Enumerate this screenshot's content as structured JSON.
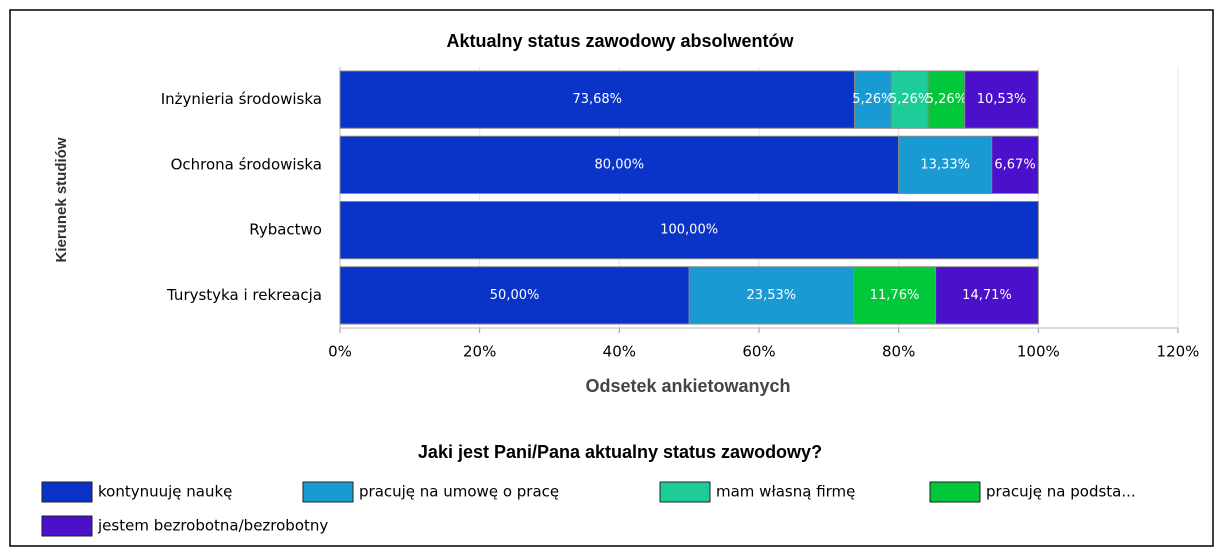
{
  "chart_data": {
    "type": "stacked-barh",
    "title": "Aktualny status zawodowy absolwentów",
    "xlabel": "Odsetek ankietowanych",
    "ylabel": "Kierunek studiów",
    "legend_title": "Jaki jest Pani/Pana aktualny status zawodowy?",
    "categories": [
      "Inżynieria środowiska",
      "Ochrona środowiska",
      "Rybactwo",
      "Turystyka i rekreacja"
    ],
    "series": [
      {
        "name": "kontynuuję naukę",
        "color": "#0a33c8",
        "values": [
          73.68,
          80.0,
          100.0,
          50.0
        ],
        "value_labels": [
          "73,68%",
          "80,00%",
          "100,00%",
          "50,00%"
        ]
      },
      {
        "name": "pracuję na umowę o pracę",
        "color": "#1a9ad2",
        "values": [
          5.26,
          13.33,
          null,
          23.53
        ],
        "value_labels": [
          "5,26%",
          "13,33%",
          null,
          "23,53%"
        ]
      },
      {
        "name": "mam własną firmę",
        "color": "#1ecc99",
        "values": [
          5.26,
          null,
          null,
          null
        ],
        "value_labels": [
          "5,26%",
          null,
          null,
          null
        ]
      },
      {
        "name": "pracuję na podsta...",
        "color": "#00c83a",
        "values": [
          5.26,
          null,
          null,
          11.76
        ],
        "value_labels": [
          "5,26%",
          null,
          null,
          "11,76%"
        ]
      },
      {
        "name": "jestem bezrobotna/bezrobotny",
        "color": "#4a10cc",
        "values": [
          10.53,
          6.67,
          null,
          14.71
        ],
        "value_labels": [
          "10,53%",
          "6,67%",
          null,
          "14,71%"
        ]
      }
    ],
    "xlim": [
      0,
      120
    ],
    "xticks": [
      {
        "value": 0,
        "label": "0%"
      },
      {
        "value": 20,
        "label": "20%"
      },
      {
        "value": 40,
        "label": "40%"
      },
      {
        "value": 60,
        "label": "60%"
      },
      {
        "value": 80,
        "label": "80%"
      },
      {
        "value": 100,
        "label": "100%"
      },
      {
        "value": 120,
        "label": "120%"
      }
    ],
    "grid": true,
    "legend": "bottom"
  }
}
